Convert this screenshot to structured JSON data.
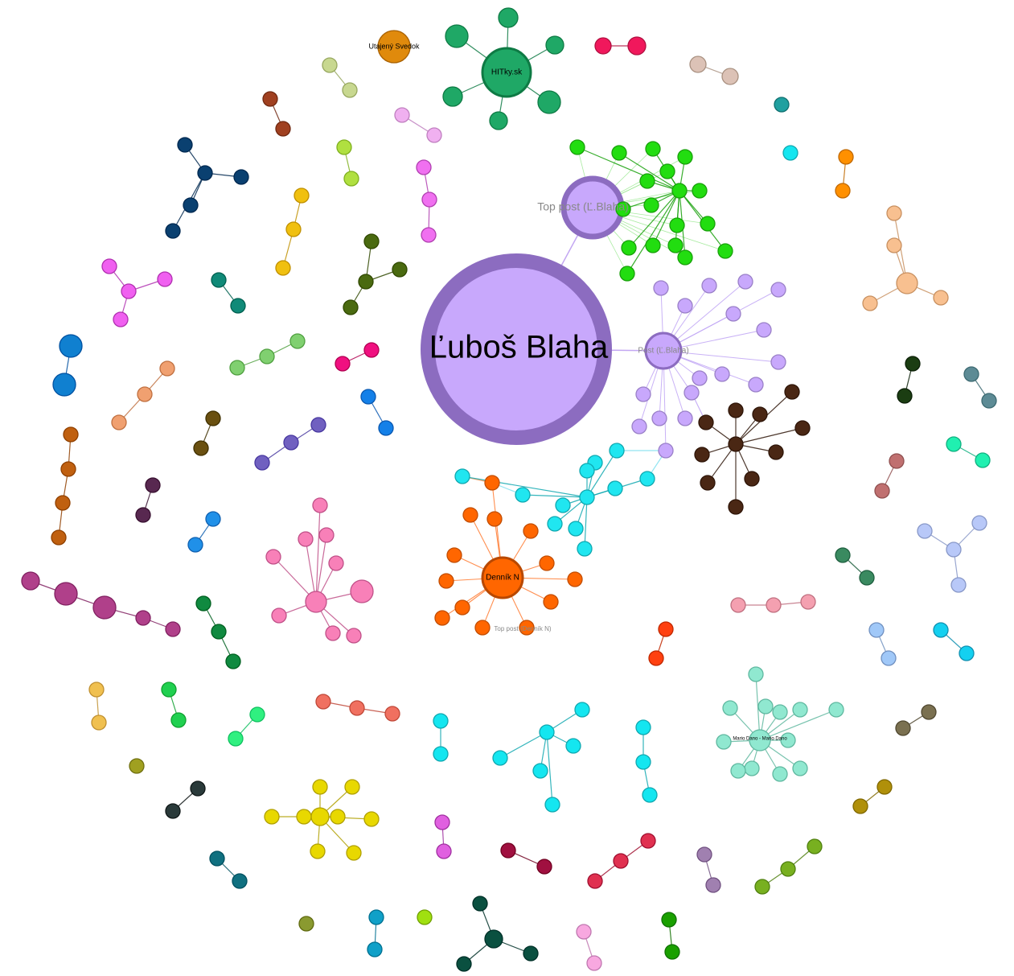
{
  "graph": {
    "nodes": [
      {
        "label": "Ľuboš Blaha"
      },
      {
        "label": "Top post (Ľ.Blaha)"
      },
      {
        "label": "Post (Ľ.Blaha)"
      },
      {
        "label": "HITky.sk"
      },
      {
        "label": "Utajený Svedok"
      },
      {
        "label": "Denník N"
      },
      {
        "label": "Top post (Denník N)"
      },
      {
        "label": "Mario Dano - Mario Dano"
      }
    ]
  }
}
